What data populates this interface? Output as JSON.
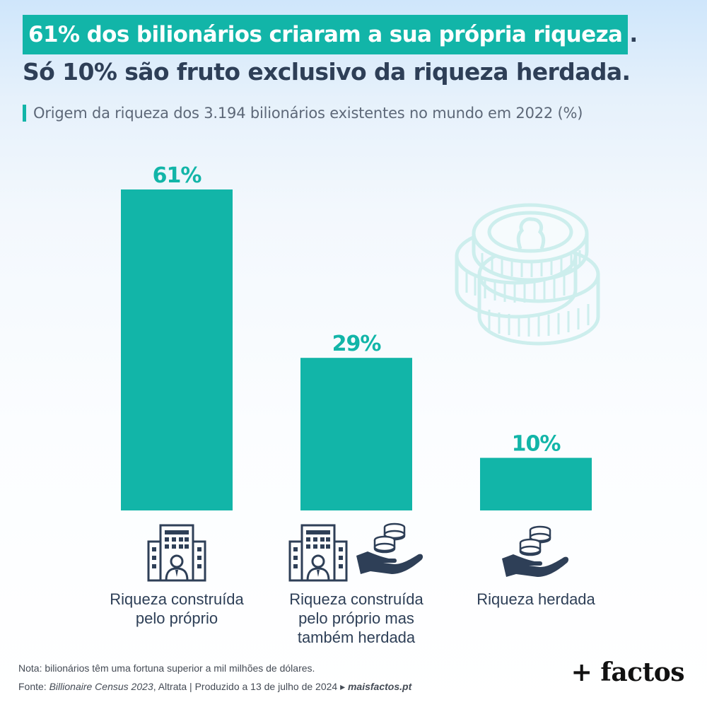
{
  "header": {
    "title_highlight": "61% dos bilionários criaram a sua própria riqueza",
    "title_dot": ".",
    "title_line2": "Só 10% são fruto exclusivo da riqueza herdada.",
    "subtitle": "Origem da riqueza dos 3.194 bilionários existentes no mundo em 2022 (%)"
  },
  "chart_data": {
    "type": "bar",
    "title": "Origem da riqueza dos 3.194 bilionários existentes no mundo em 2022 (%)",
    "categories": [
      "Riqueza construída pelo próprio",
      "Riqueza construída pelo próprio mas também herdada",
      "Riqueza herdada"
    ],
    "category_lines": [
      [
        "Riqueza construída",
        "pelo próprio"
      ],
      [
        "Riqueza construída",
        "pelo próprio mas",
        "também herdada"
      ],
      [
        "Riqueza herdada"
      ]
    ],
    "values": [
      61,
      29,
      10
    ],
    "value_labels": [
      "61%",
      "29%",
      "10%"
    ],
    "ylim": [
      0,
      61
    ],
    "grid": false,
    "bar_color": "#12b5a8"
  },
  "colors": {
    "accent": "#12b5a8",
    "dark_text": "#2e3f57",
    "icon": "#2e3f57",
    "coin_watermark": "#cdeeed"
  },
  "icons": {
    "decor": "coins-stack-icon",
    "cat1": "building-person-icon",
    "cat2": [
      "building-person-icon",
      "hand-coins-icon"
    ],
    "cat3": "hand-coins-icon"
  },
  "footer": {
    "note": "Nota: bilionários têm uma fortuna superior a mil milhões de dólares.",
    "source_prefix": "Fonte: ",
    "source_title": "Billionaire Census 2023",
    "source_rest": ", Altrata  |  Produzido a 13 de julho de 2024 ▸ ",
    "source_site": "maisfactos.pt",
    "brand": "+ factos"
  }
}
